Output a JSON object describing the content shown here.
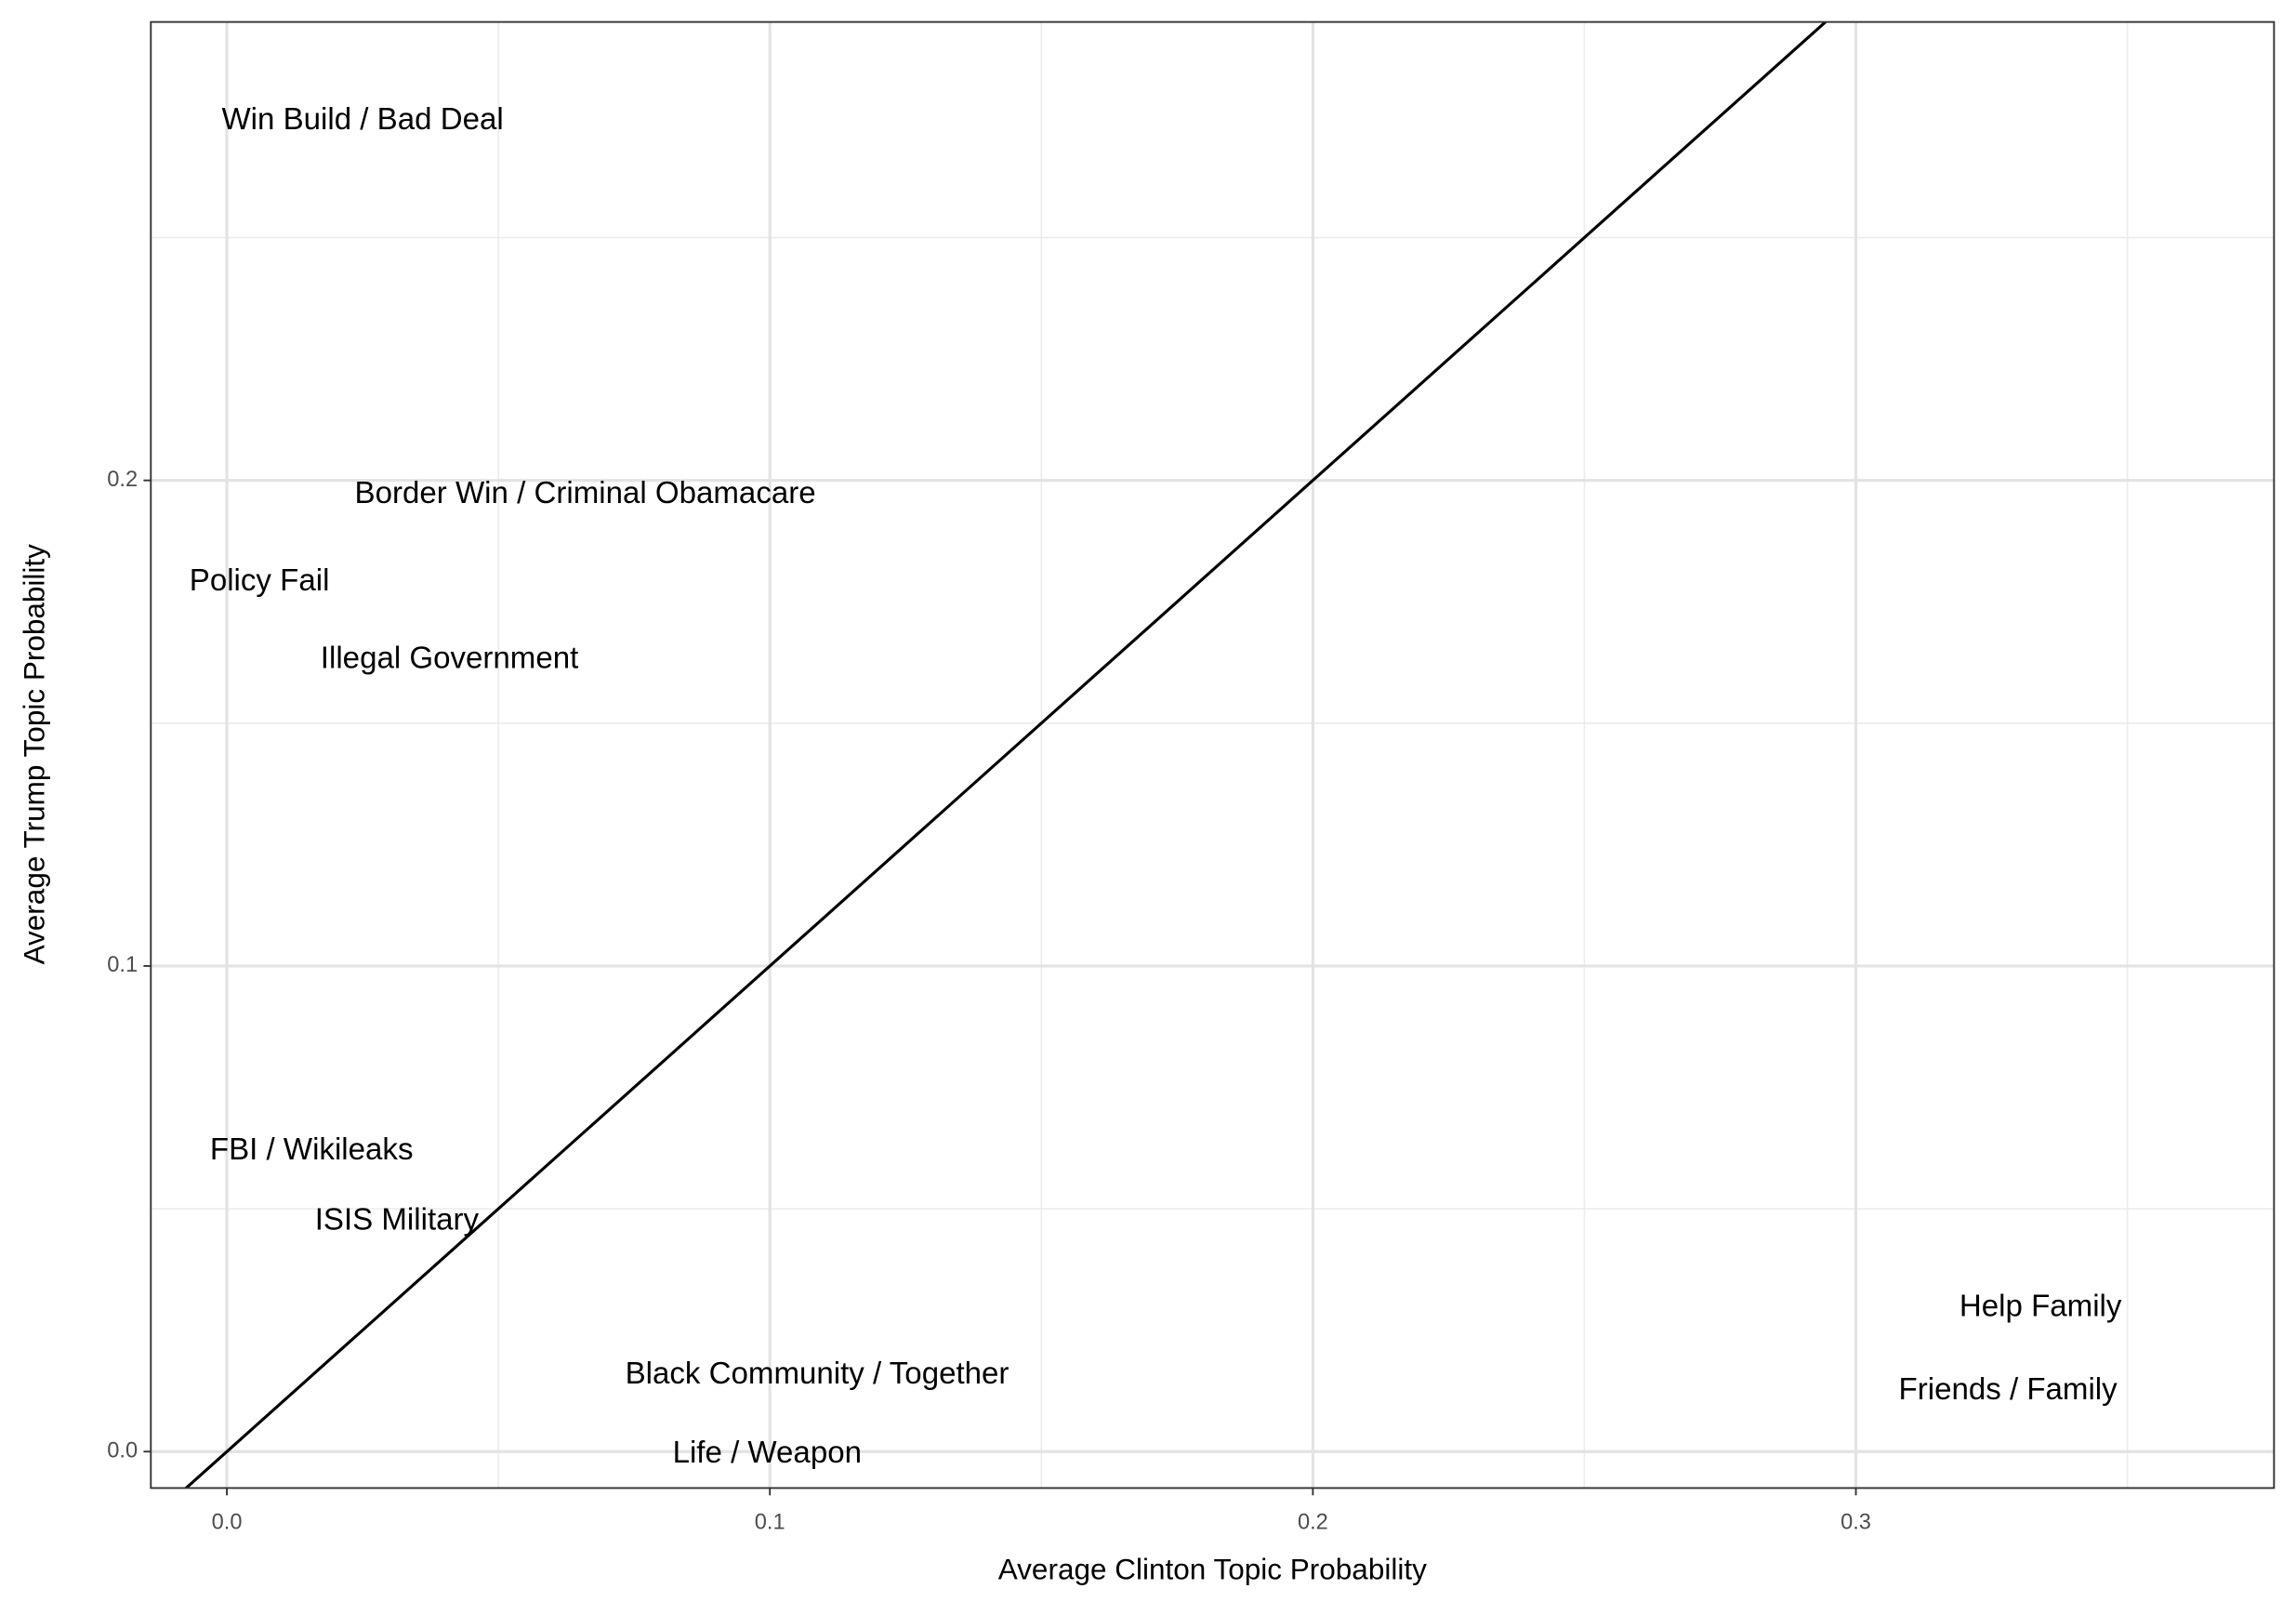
{
  "chart_data": {
    "type": "scatter",
    "x_label": "Average Clinton Topic Probability",
    "y_label": "Average Trump Topic Probability",
    "labels": [
      "Win Build / Bad Deal",
      "Border Win / Criminal Obamacare",
      "Policy Fail",
      "Illegal Government",
      "FBI / Wikileaks",
      "ISIS Military",
      "Help Family",
      "Black Community / Together",
      "Friends / Family",
      "Life / Weapon"
    ],
    "x": [
      0.025,
      0.066,
      0.006,
      0.041,
      0.0156,
      0.0313,
      0.334,
      0.1087,
      0.328,
      0.0995
    ],
    "y": [
      0.274,
      0.197,
      0.179,
      0.163,
      0.0618,
      0.0474,
      0.0296,
      0.0157,
      0.0124,
      -0.0006
    ],
    "xlim": [
      -0.014,
      0.377
    ],
    "ylim": [
      -0.0075,
      0.2944
    ],
    "xticks": [
      {
        "value": 0,
        "label": "0.0"
      },
      0.1,
      0.2,
      0.3
    ],
    "yticks": [
      {
        "value": 0,
        "label": "0.0"
      },
      0.1,
      0.2
    ],
    "x_minor_ticks": [
      0.05,
      0.15,
      0.25,
      0.35
    ],
    "y_minor_ticks": [
      0.05,
      0.15,
      0.25
    ],
    "identity_line": true,
    "grid": true
  }
}
